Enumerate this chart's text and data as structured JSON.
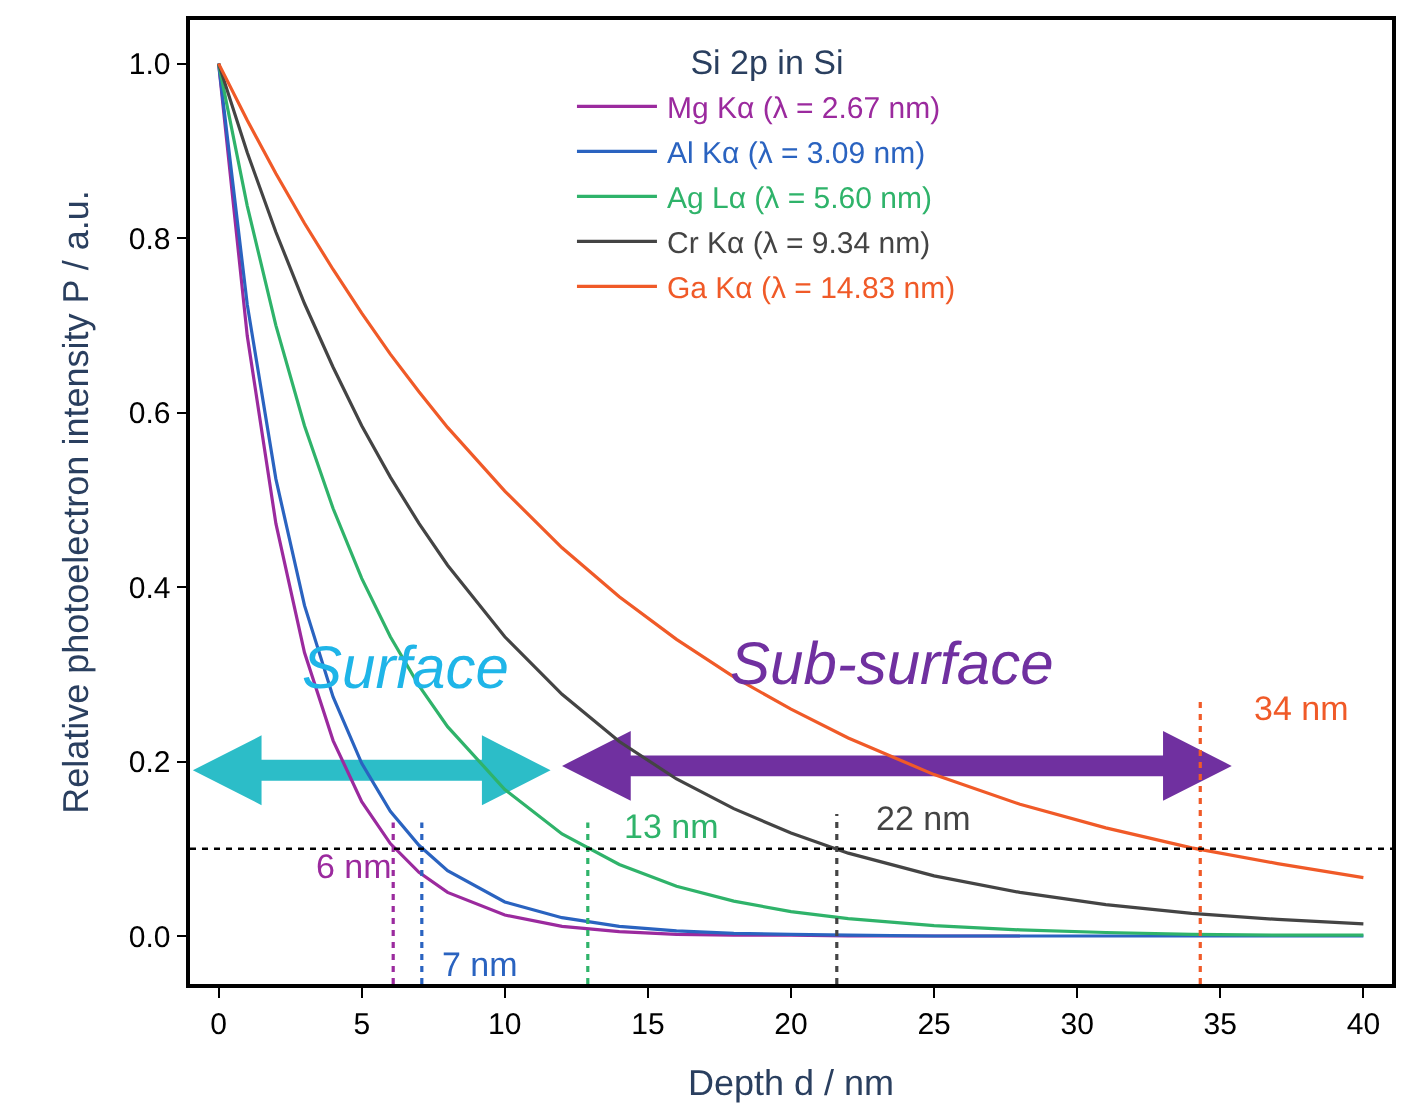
{
  "chart_data": {
    "type": "line",
    "xlabel": "Depth d / nm",
    "ylabel": "Relative photoelectron intensity P / a.u.",
    "legend_title": "Si 2p in Si",
    "legend": "top",
    "grid": false,
    "marker": "none",
    "line_style": "solid",
    "x": [
      0,
      1,
      2,
      3,
      4,
      5,
      6,
      7,
      8,
      10,
      12,
      14,
      16,
      18,
      20,
      22,
      25,
      28,
      31,
      34,
      37,
      40
    ],
    "xlim": [
      -1,
      41
    ],
    "xticks": [
      0,
      5,
      10,
      15,
      20,
      25,
      30,
      35,
      40
    ],
    "ylim": [
      -0.055,
      1.05
    ],
    "yticks": [
      {
        "value": 0,
        "label": "0.0"
      },
      0.2,
      0.4,
      0.6,
      0.8,
      {
        "value": 1,
        "label": "1.0"
      }
    ],
    "series": [
      {
        "name": "Mg Kα (λ = 2.67 nm)",
        "color": "#9b2a9e",
        "values": [
          1,
          0.688,
          0.473,
          0.325,
          0.224,
          0.154,
          0.106,
          0.073,
          0.05,
          0.024,
          0.011,
          0.005,
          0.002,
          0.001,
          0.001,
          0,
          0,
          0,
          null,
          null,
          null,
          null
        ]
      },
      {
        "name": "Al Kα (λ = 3.09 nm)",
        "color": "#2a63c0",
        "values": [
          1,
          0.724,
          0.524,
          0.379,
          0.274,
          0.198,
          0.143,
          0.104,
          0.075,
          0.039,
          0.021,
          0.011,
          0.006,
          0.003,
          0.002,
          0.001,
          0,
          0,
          0,
          0,
          0,
          0
        ]
      },
      {
        "name": "Ag Lα (λ = 5.60 nm)",
        "color": "#2fb36a",
        "values": [
          1,
          0.837,
          0.7,
          0.585,
          0.49,
          0.41,
          0.343,
          0.287,
          0.24,
          0.168,
          0.117,
          0.082,
          0.057,
          0.04,
          0.028,
          0.02,
          0.012,
          0.007,
          0.004,
          0.002,
          0.001,
          0.001
        ]
      },
      {
        "name": "Cr Kα (λ = 9.34 nm)",
        "color": "#444444",
        "values": [
          1,
          0.898,
          0.807,
          0.725,
          0.652,
          0.585,
          0.526,
          0.473,
          0.425,
          0.343,
          0.277,
          0.223,
          0.18,
          0.146,
          0.118,
          0.095,
          0.069,
          0.05,
          0.036,
          0.026,
          0.019,
          0.014
        ]
      },
      {
        "name": "Ga Kα (λ = 14.83 nm)",
        "color": "#f05a28",
        "values": [
          1,
          0.935,
          0.874,
          0.817,
          0.764,
          0.714,
          0.667,
          0.624,
          0.583,
          0.51,
          0.445,
          0.389,
          0.34,
          0.297,
          0.26,
          0.227,
          0.185,
          0.151,
          0.124,
          0.101,
          0.083,
          0.067
        ]
      },
      {
        "color": "#9b2a9e",
        "line_style": "dotted",
        "x": [
          6.1,
          6.1
        ],
        "values": [
          -0.055,
          0.13
        ]
      },
      {
        "color": "#2a63c0",
        "line_style": "dotted",
        "x": [
          7.1,
          7.1
        ],
        "values": [
          -0.055,
          0.13
        ]
      },
      {
        "color": "#2fb36a",
        "line_style": "dotted",
        "x": [
          12.9,
          12.9
        ],
        "values": [
          -0.055,
          0.13
        ]
      },
      {
        "color": "#444444",
        "line_style": "dotted",
        "x": [
          21.6,
          21.6
        ],
        "values": [
          -0.055,
          0.14
        ]
      },
      {
        "color": "#f05a28",
        "line_style": "dotted",
        "x": [
          34.3,
          34.3
        ],
        "values": [
          -0.055,
          0.27
        ]
      }
    ],
    "ref_lines": [
      {
        "axis": "y",
        "value": 0.1,
        "color": "#000000",
        "line_style": "dotted"
      }
    ],
    "annotations": [
      "Surface",
      "Sub-surface",
      "6 nm",
      "7 nm",
      "13 nm",
      "22 nm",
      "34 nm"
    ]
  }
}
